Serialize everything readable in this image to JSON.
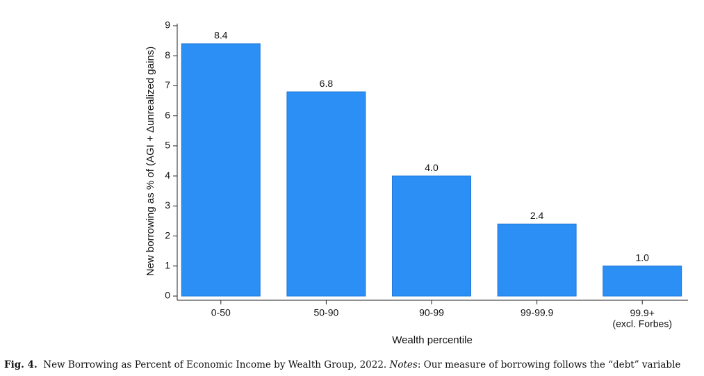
{
  "chart_data": {
    "type": "bar",
    "x_label": "Wealth percentile",
    "y_label": "New borrowing as % of (AGI + Δunrealized gains)",
    "categories": [
      "0-50",
      "50-90",
      "90-99",
      "99-99.9",
      "99.9+\n(excl. Forbes)"
    ],
    "values": [
      8.4,
      6.8,
      4.0,
      2.4,
      1.0
    ],
    "value_labels": [
      "8.4",
      "6.8",
      "4.0",
      "2.4",
      "1.0"
    ],
    "color": "#2b8ff5",
    "ylim": [
      0,
      9
    ],
    "yticks": [
      0,
      1,
      2,
      3,
      4,
      5,
      6,
      7,
      8,
      9
    ],
    "grid": false
  },
  "caption": {
    "label": "Fig. 4.",
    "text": "New Borrowing as Percent of Economic Income by Wealth Group, 2022.",
    "notes_label": "Notes",
    "notes_text": ": Our measure of borrowing follows the “debt” variable"
  }
}
